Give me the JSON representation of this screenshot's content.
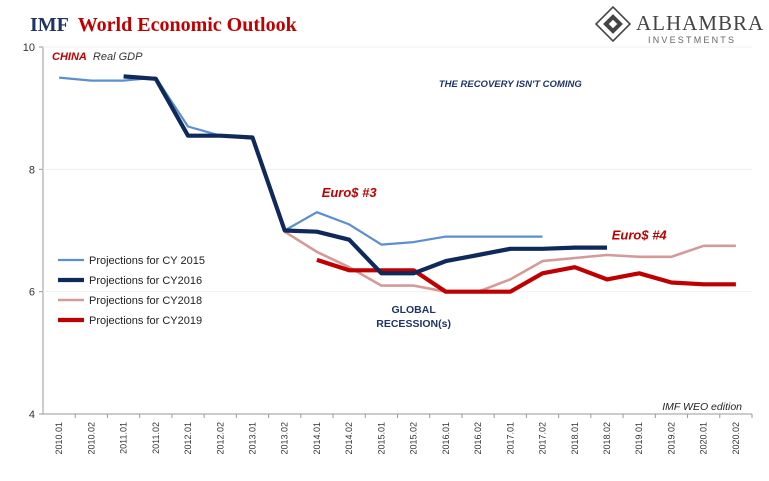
{
  "header": {
    "title_prefix": "IMF",
    "title_main": "World Economic Outlook",
    "logo_name": "ALHAMBRA",
    "logo_sub": "INVESTMENTS"
  },
  "colors": {
    "navy": "#1f3466",
    "red": "#c00000",
    "series2015": "#5b8fd0",
    "series2016": "#0f2a5a",
    "series2018": "#d49a9a",
    "series2019": "#c00000",
    "axis": "#999999"
  },
  "chart_data": {
    "type": "line",
    "title": "",
    "xlabel": "IMF WEO edition",
    "ylabel": "",
    "subtitle_country": "CHINA",
    "subtitle_metric": "Real GDP",
    "ylim": [
      4,
      10
    ],
    "yticks": [
      4,
      6,
      8,
      10
    ],
    "grid": false,
    "legend_position": "left",
    "categories": [
      "2010.01",
      "2010.02",
      "2011.01",
      "2011.02",
      "2012.01",
      "2012.02",
      "2013.01",
      "2013.02",
      "2014.01",
      "2014.02",
      "2015.01",
      "2015.02",
      "2016.01",
      "2016.02",
      "2017.01",
      "2017.02",
      "2018.01",
      "2018.02",
      "2019.01",
      "2019.02",
      "2020.01",
      "2020.02"
    ],
    "series": [
      {
        "name": "Projections for CY 2015",
        "values": [
          9.5,
          9.45,
          9.45,
          9.5,
          8.7,
          8.55,
          8.5,
          7.0,
          7.3,
          7.1,
          6.77,
          6.81,
          6.9,
          6.9,
          6.9,
          6.9,
          null,
          null,
          null,
          null,
          null,
          null
        ]
      },
      {
        "name": "Projections for CY2016",
        "values": [
          null,
          null,
          9.52,
          9.48,
          8.55,
          8.55,
          8.52,
          7.0,
          6.98,
          6.85,
          6.3,
          6.3,
          6.5,
          6.6,
          6.7,
          6.7,
          6.72,
          6.72,
          null,
          null,
          null,
          null
        ]
      },
      {
        "name": "Projections for CY2018",
        "values": [
          null,
          null,
          null,
          null,
          null,
          null,
          8.52,
          6.98,
          6.65,
          6.4,
          6.1,
          6.1,
          6.0,
          6.0,
          6.2,
          6.5,
          6.55,
          6.6,
          6.57,
          6.57,
          6.75,
          6.75
        ]
      },
      {
        "name": "Projections for CY2019",
        "values": [
          null,
          null,
          null,
          null,
          null,
          null,
          null,
          null,
          6.52,
          6.35,
          6.35,
          6.35,
          6.0,
          6.0,
          6.0,
          6.3,
          6.4,
          6.2,
          6.3,
          6.15,
          6.12,
          6.12
        ]
      }
    ],
    "annotations": [
      {
        "text": "THE RECOVERY ISN'T COMING",
        "x": "2017.01",
        "y": 9.35
      },
      {
        "text": "Euro$ #3",
        "x": "2014.02",
        "y": 7.55
      },
      {
        "text": "Euro$ #4",
        "x": "2019.01",
        "y": 6.85
      },
      {
        "text": "GLOBAL",
        "x": "2015.02",
        "y": 5.65
      },
      {
        "text": "RECESSION(s)",
        "x": "2015.02",
        "y": 5.42
      }
    ]
  }
}
